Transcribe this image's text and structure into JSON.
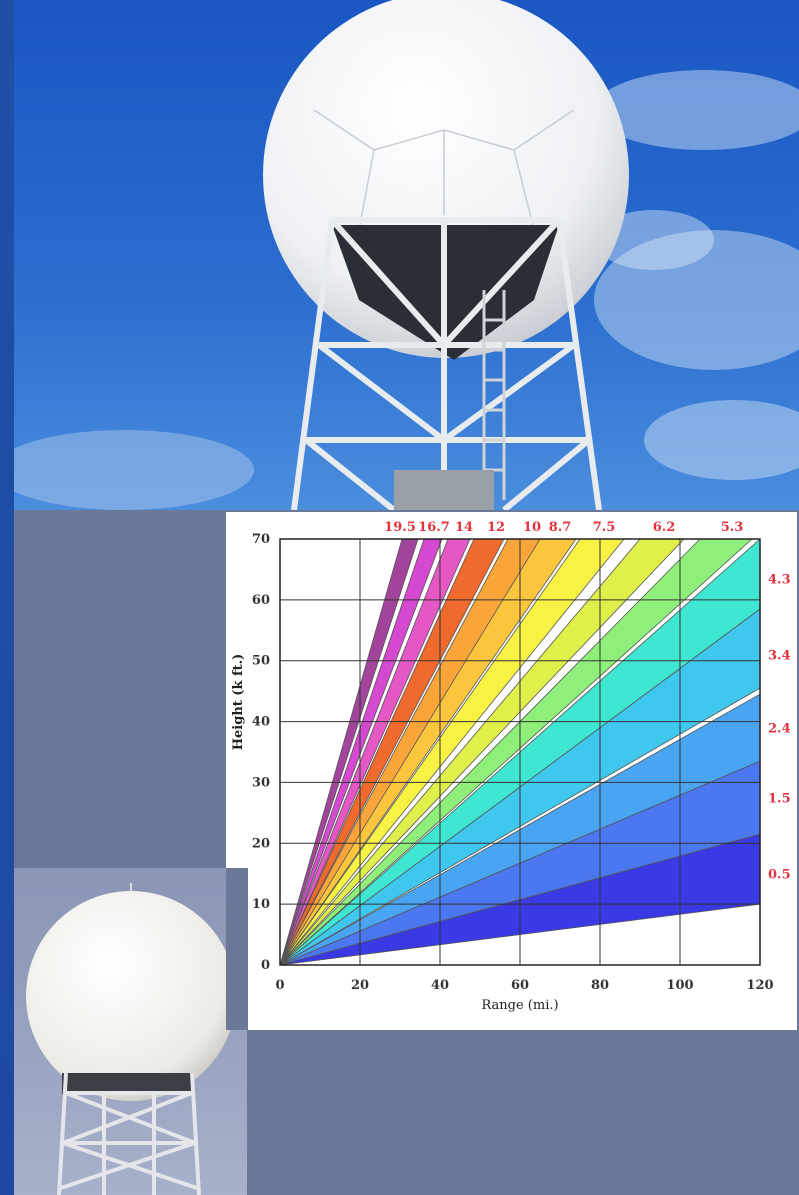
{
  "chart_data": {
    "type": "area",
    "xlabel": "Range (mi.)",
    "ylabel": "Height (k ft.)",
    "xlim": [
      0,
      120
    ],
    "ylim": [
      0,
      70
    ],
    "xticks": [
      0,
      20,
      40,
      60,
      80,
      100,
      120
    ],
    "yticks": [
      0,
      10,
      20,
      30,
      40,
      50,
      60,
      70
    ],
    "grid": true,
    "beams": [
      {
        "label": "0.5",
        "color": "#3a3ae4",
        "lower_end_height": 10,
        "upper_end_height": 21.5
      },
      {
        "label": "1.5",
        "color": "#4b78f0",
        "lower_end_height": 21.5,
        "upper_end_height": 33.5
      },
      {
        "label": "2.4",
        "color": "#49a4f2",
        "lower_end_height": 33.5,
        "upper_end_height": 44.5
      },
      {
        "label": "3.4",
        "color": "#40c7ee",
        "lower_end_height": 45.5,
        "upper_end_height": 58.5
      },
      {
        "label": "4.3",
        "color": "#3fe6d2",
        "lower_end_height": 58.5,
        "upper_end_height": 70
      },
      {
        "label": "5.3",
        "color": "#8ef07a",
        "lower_end_range": 105,
        "upper_end_range": 118
      },
      {
        "label": "6.2",
        "color": "#dff04a",
        "lower_end_range": 90,
        "upper_end_range": 101
      },
      {
        "label": "7.5",
        "color": "#f8f245",
        "lower_end_range": 75,
        "upper_end_range": 86
      },
      {
        "label": "8.7",
        "color": "#fbc53d",
        "lower_end_range": 64.5,
        "upper_end_range": 74
      },
      {
        "label": "10",
        "color": "#f9a539",
        "lower_end_range": 57,
        "upper_end_range": 65
      },
      {
        "label": "12",
        "color": "#ef6a2c",
        "lower_end_range": 48.5,
        "upper_end_range": 56
      },
      {
        "label": "14",
        "color": "#e457c5",
        "lower_end_range": 42,
        "upper_end_range": 47.5
      },
      {
        "label": "16.7",
        "color": "#d548d0",
        "lower_end_range": 36,
        "upper_end_range": 40.5
      },
      {
        "label": "19.5",
        "color": "#a3449c",
        "lower_end_range": 30.5,
        "upper_end_range": 34.5
      }
    ],
    "top_labels": [
      "19.5",
      "16.7",
      "14",
      "12",
      "10",
      "8.7",
      "7.5",
      "6.2",
      "5.3"
    ],
    "right_labels": [
      "4.3",
      "3.4",
      "2.4",
      "1.5",
      "0.5"
    ]
  },
  "colors": {
    "label_red": "#e0333f",
    "panel_gray": "#6b7898",
    "frame_blue": "#1e4fa8",
    "grid_line": "#333333"
  }
}
